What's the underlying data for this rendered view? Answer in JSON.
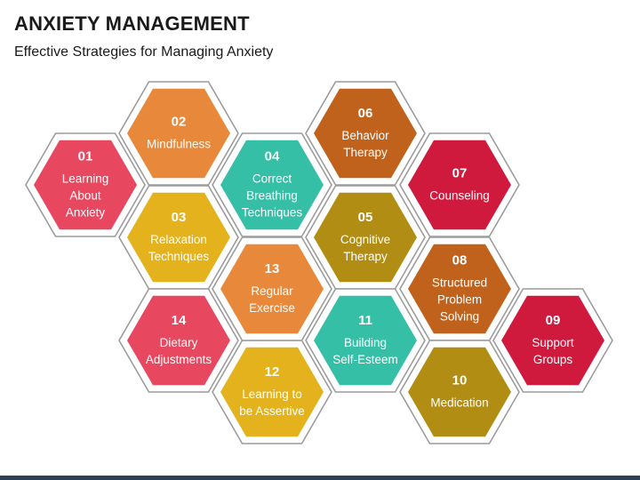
{
  "header": {
    "title": "ANXIETY MANAGEMENT",
    "subtitle": "Effective Strategies for Managing Anxiety"
  },
  "colors": {
    "pink": "#e8485f",
    "orange": "#e8883a",
    "yellow": "#e4b21c",
    "teal": "#35bfa6",
    "brown": "#c0621b",
    "olive": "#b28d14",
    "crimson": "#d01a3d",
    "outline": "#9c9c9c",
    "footer": "#2e3f55"
  },
  "hexagons": [
    {
      "id": "01",
      "lines": [
        "Learning",
        "About",
        "Anxiety"
      ],
      "color": "pink"
    },
    {
      "id": "02",
      "lines": [
        "Mindfulness"
      ],
      "color": "orange"
    },
    {
      "id": "03",
      "lines": [
        "Relaxation",
        "Techniques"
      ],
      "color": "yellow"
    },
    {
      "id": "04",
      "lines": [
        "Correct",
        "Breathing",
        "Techniques"
      ],
      "color": "teal"
    },
    {
      "id": "05",
      "lines": [
        "Cognitive",
        "Therapy"
      ],
      "color": "olive"
    },
    {
      "id": "06",
      "lines": [
        "Behavior",
        "Therapy"
      ],
      "color": "brown"
    },
    {
      "id": "07",
      "lines": [
        "Counseling"
      ],
      "color": "crimson"
    },
    {
      "id": "08",
      "lines": [
        "Structured",
        "Problem",
        "Solving"
      ],
      "color": "brown"
    },
    {
      "id": "09",
      "lines": [
        "Support",
        "Groups"
      ],
      "color": "crimson"
    },
    {
      "id": "10",
      "lines": [
        "Medication"
      ],
      "color": "olive"
    },
    {
      "id": "11",
      "lines": [
        "Building",
        "Self-Esteem"
      ],
      "color": "teal"
    },
    {
      "id": "12",
      "lines": [
        "Learning to",
        "be Assertive"
      ],
      "color": "yellow"
    },
    {
      "id": "13",
      "lines": [
        "Regular",
        "Exercise"
      ],
      "color": "orange"
    },
    {
      "id": "14",
      "lines": [
        "Dietary",
        "Adjustments"
      ],
      "color": "pink"
    }
  ]
}
